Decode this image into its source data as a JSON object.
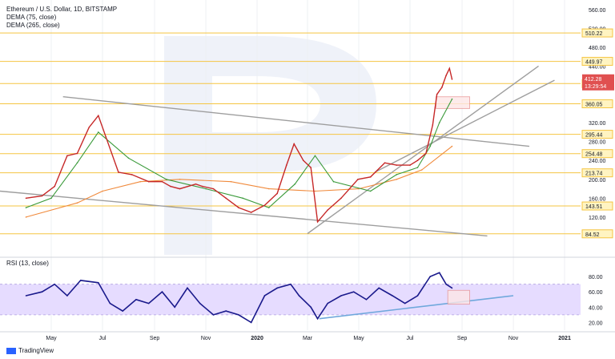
{
  "header": {
    "symbol": "Ethereum / U.S. Dollar, 1D, BITSTAMP",
    "ind1": "DEMA (75, close)",
    "ind2": "DEMA (265, close)",
    "rsi": "RSI (13, close)"
  },
  "branding": {
    "logo_text": "TradingView"
  },
  "colors": {
    "price_line": "#c62828",
    "dema_fast": "#3a9a3a",
    "dema_slow": "#f08a3c",
    "level_line": "#f5c542",
    "channel": "#9e9e9e",
    "rsi_line": "#1a1a8c",
    "rsi_band": "#e6dcff",
    "rsi_trend": "#6fa8dc",
    "marker_box": "#e99a9a"
  },
  "chart_data": [
    {
      "type": "line",
      "title": "Ethereum / U.S. Dollar, 1D, BITSTAMP",
      "price_axis_ticks": [
        "560.00",
        "520.00",
        "480.00",
        "440.00",
        "400.00",
        "360.00",
        "320.00",
        "280.00",
        "240.00",
        "200.00",
        "160.00",
        "120.00"
      ],
      "time_axis_ticks": [
        "May",
        "Jul",
        "Sep",
        "Nov",
        "2020",
        "Mar",
        "May",
        "Jul",
        "Sep",
        "Nov",
        "2021"
      ],
      "levels": [
        "510.22",
        "449.97",
        "402.87",
        "360.05",
        "295.44",
        "254.48",
        "213.74",
        "143.51",
        "84.52"
      ],
      "last_price_label": "412.28",
      "countdown_label": "13:29:54",
      "series": [
        {
          "name": "price",
          "x": [
            "2019-04-01",
            "2019-04-20",
            "2019-05-05",
            "2019-05-20",
            "2019-06-01",
            "2019-06-15",
            "2019-06-26",
            "2019-07-05",
            "2019-07-20",
            "2019-08-05",
            "2019-08-25",
            "2019-09-10",
            "2019-09-20",
            "2019-10-01",
            "2019-10-20",
            "2019-10-28",
            "2019-11-10",
            "2019-11-25",
            "2019-12-10",
            "2019-12-25",
            "2020-01-10",
            "2020-01-25",
            "2020-02-05",
            "2020-02-14",
            "2020-02-25",
            "2020-03-05",
            "2020-03-13",
            "2020-03-25",
            "2020-04-10",
            "2020-04-30",
            "2020-05-15",
            "2020-06-01",
            "2020-06-15",
            "2020-07-01",
            "2020-07-10",
            "2020-07-20",
            "2020-07-28",
            "2020-08-02",
            "2020-08-08",
            "2020-08-13",
            "2020-08-17",
            "2020-08-20"
          ],
          "values": [
            160,
            165,
            185,
            250,
            255,
            310,
            335,
            290,
            215,
            210,
            195,
            195,
            185,
            180,
            190,
            185,
            180,
            160,
            140,
            130,
            145,
            170,
            230,
            275,
            240,
            225,
            110,
            135,
            160,
            200,
            205,
            235,
            230,
            230,
            240,
            255,
            315,
            380,
            395,
            420,
            435,
            412
          ]
        },
        {
          "name": "DEMA (75, close)",
          "x": [
            "2019-04-01",
            "2019-05-01",
            "2019-06-01",
            "2019-06-26",
            "2019-08-01",
            "2019-09-15",
            "2019-11-01",
            "2019-12-15",
            "2020-01-15",
            "2020-02-15",
            "2020-03-10",
            "2020-04-01",
            "2020-05-15",
            "2020-06-15",
            "2020-07-10",
            "2020-07-25",
            "2020-08-05",
            "2020-08-20"
          ],
          "values": [
            140,
            160,
            235,
            300,
            245,
            200,
            180,
            160,
            140,
            190,
            250,
            195,
            175,
            210,
            225,
            270,
            320,
            370
          ]
        },
        {
          "name": "DEMA (265, close)",
          "x": [
            "2019-04-01",
            "2019-06-01",
            "2019-07-01",
            "2019-08-15",
            "2019-10-01",
            "2019-12-01",
            "2020-01-15",
            "2020-03-10",
            "2020-05-01",
            "2020-06-15",
            "2020-07-15",
            "2020-08-20"
          ],
          "values": [
            120,
            150,
            175,
            195,
            200,
            195,
            180,
            175,
            180,
            200,
            220,
            270
          ]
        }
      ]
    },
    {
      "type": "line",
      "title": "RSI (13, close)",
      "yticks": [
        "80.00",
        "60.00",
        "40.00",
        "20.00"
      ],
      "band": [
        30,
        70
      ],
      "series": [
        {
          "name": "RSI (13, close)",
          "x": [
            "2019-04-01",
            "2019-04-20",
            "2019-05-05",
            "2019-05-20",
            "2019-06-05",
            "2019-06-26",
            "2019-07-10",
            "2019-07-25",
            "2019-08-10",
            "2019-08-25",
            "2019-09-10",
            "2019-09-25",
            "2019-10-10",
            "2019-10-25",
            "2019-11-10",
            "2019-11-25",
            "2019-12-10",
            "2019-12-25",
            "2020-01-10",
            "2020-01-25",
            "2020-02-10",
            "2020-02-20",
            "2020-03-05",
            "2020-03-13",
            "2020-03-25",
            "2020-04-10",
            "2020-04-25",
            "2020-05-10",
            "2020-05-25",
            "2020-06-10",
            "2020-06-25",
            "2020-07-10",
            "2020-07-25",
            "2020-08-05",
            "2020-08-13",
            "2020-08-20"
          ],
          "values": [
            55,
            60,
            70,
            55,
            75,
            72,
            45,
            35,
            50,
            45,
            60,
            40,
            65,
            45,
            30,
            35,
            30,
            20,
            55,
            65,
            70,
            55,
            40,
            25,
            45,
            55,
            60,
            50,
            65,
            55,
            45,
            55,
            80,
            85,
            70,
            65
          ]
        }
      ]
    }
  ]
}
